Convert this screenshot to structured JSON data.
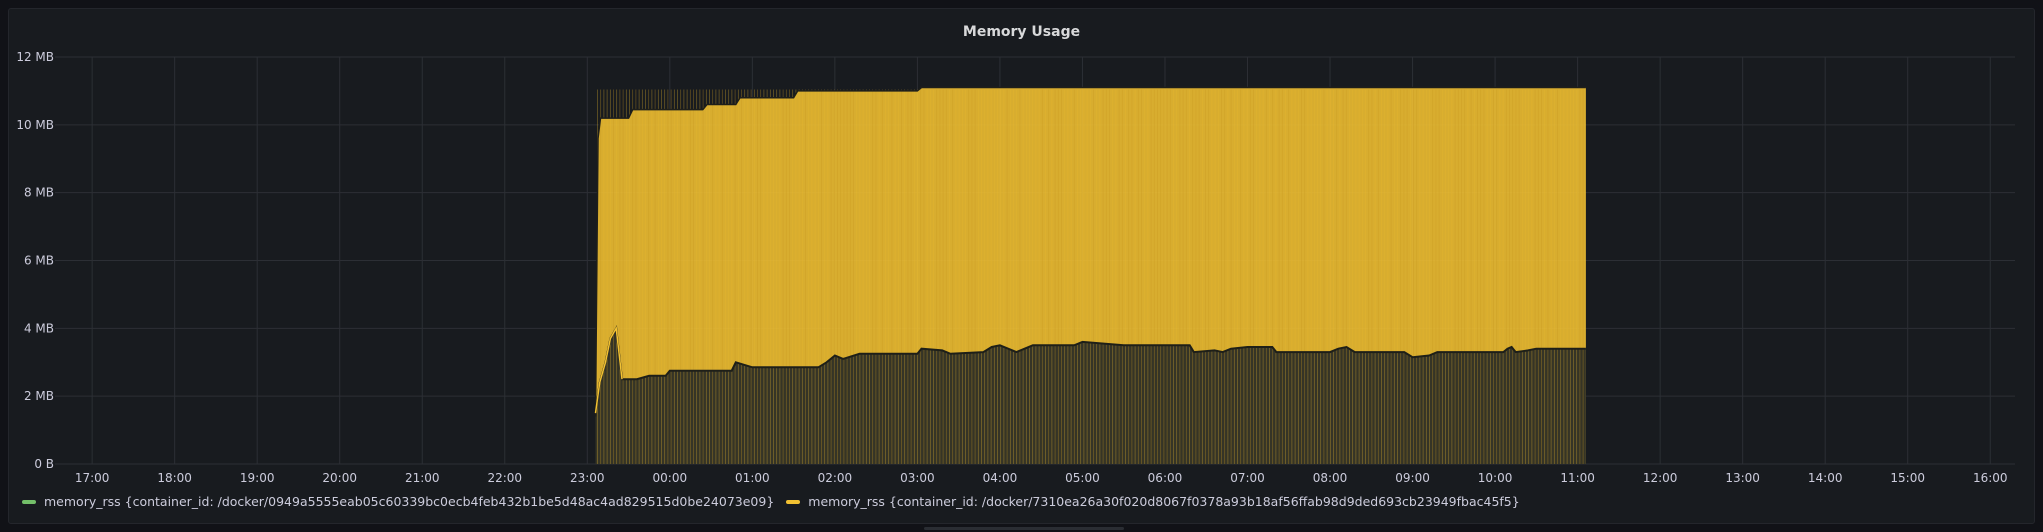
{
  "panel": {
    "title": "Memory Usage"
  },
  "colors": {
    "background": "#181b1f",
    "grid": "#2c2f35",
    "series_green": "#73bf69",
    "series_yellow": "#f2c132",
    "text": "#ccccdc"
  },
  "chart_data": {
    "type": "area",
    "title": "Memory Usage",
    "grid": true,
    "legend_placement": "bottom-left",
    "y_unit": "MB",
    "ylim": [
      0,
      12
    ],
    "y_ticks": [
      {
        "value": 0,
        "label": "0 B"
      },
      {
        "value": 2,
        "label": "2 MB"
      },
      {
        "value": 4,
        "label": "4 MB"
      },
      {
        "value": 6,
        "label": "6 MB"
      },
      {
        "value": 8,
        "label": "8 MB"
      },
      {
        "value": 10,
        "label": "10 MB"
      },
      {
        "value": 12,
        "label": "12 MB"
      }
    ],
    "x_axis_unit": "hours (day 2 = 24 + clock hour)",
    "xlim": [
      16.55,
      40.3
    ],
    "x_ticks": [
      {
        "value": 17,
        "label": "17:00"
      },
      {
        "value": 18,
        "label": "18:00"
      },
      {
        "value": 19,
        "label": "19:00"
      },
      {
        "value": 20,
        "label": "20:00"
      },
      {
        "value": 21,
        "label": "21:00"
      },
      {
        "value": 22,
        "label": "22:00"
      },
      {
        "value": 23,
        "label": "23:00"
      },
      {
        "value": 24,
        "label": "00:00"
      },
      {
        "value": 25,
        "label": "01:00"
      },
      {
        "value": 26,
        "label": "02:00"
      },
      {
        "value": 27,
        "label": "03:00"
      },
      {
        "value": 28,
        "label": "04:00"
      },
      {
        "value": 29,
        "label": "05:00"
      },
      {
        "value": 30,
        "label": "06:00"
      },
      {
        "value": 31,
        "label": "07:00"
      },
      {
        "value": 32,
        "label": "08:00"
      },
      {
        "value": 33,
        "label": "09:00"
      },
      {
        "value": 34,
        "label": "10:00"
      },
      {
        "value": 35,
        "label": "11:00"
      },
      {
        "value": 36,
        "label": "12:00"
      },
      {
        "value": 37,
        "label": "13:00"
      },
      {
        "value": 38,
        "label": "14:00"
      },
      {
        "value": 39,
        "label": "15:00"
      },
      {
        "value": 40,
        "label": "16:00"
      }
    ],
    "series": [
      {
        "name": "memory_rss {container_id: /docker/0949a5555eab05c60339bc0ecb4feb432b1be5d48ac4ad829515d0be24073e09}",
        "color": "#73bf69",
        "data": [
          [
            23.1,
            1.5
          ],
          [
            23.15,
            2.4
          ],
          [
            23.22,
            3.0
          ],
          [
            23.28,
            3.7
          ],
          [
            23.35,
            4.0
          ],
          [
            23.42,
            2.5
          ],
          [
            23.6,
            2.5
          ],
          [
            23.75,
            2.6
          ],
          [
            23.95,
            2.6
          ],
          [
            24.0,
            2.75
          ],
          [
            24.75,
            2.75
          ],
          [
            24.8,
            3.0
          ],
          [
            25.0,
            2.85
          ],
          [
            25.5,
            2.85
          ],
          [
            25.8,
            2.85
          ],
          [
            25.9,
            3.0
          ],
          [
            26.0,
            3.2
          ],
          [
            26.1,
            3.1
          ],
          [
            26.3,
            3.25
          ],
          [
            27.0,
            3.25
          ],
          [
            27.05,
            3.4
          ],
          [
            27.3,
            3.35
          ],
          [
            27.4,
            3.25
          ],
          [
            27.8,
            3.3
          ],
          [
            27.9,
            3.45
          ],
          [
            28.0,
            3.5
          ],
          [
            28.2,
            3.3
          ],
          [
            28.4,
            3.5
          ],
          [
            28.9,
            3.5
          ],
          [
            29.0,
            3.6
          ],
          [
            29.5,
            3.5
          ],
          [
            29.8,
            3.5
          ],
          [
            30.3,
            3.5
          ],
          [
            30.35,
            3.3
          ],
          [
            30.6,
            3.35
          ],
          [
            30.7,
            3.3
          ],
          [
            30.8,
            3.4
          ],
          [
            31.0,
            3.45
          ],
          [
            31.3,
            3.45
          ],
          [
            31.35,
            3.3
          ],
          [
            32.0,
            3.3
          ],
          [
            32.1,
            3.4
          ],
          [
            32.2,
            3.45
          ],
          [
            32.3,
            3.3
          ],
          [
            32.9,
            3.3
          ],
          [
            33.0,
            3.15
          ],
          [
            33.2,
            3.2
          ],
          [
            33.3,
            3.3
          ],
          [
            34.1,
            3.3
          ],
          [
            34.15,
            3.4
          ],
          [
            34.2,
            3.45
          ],
          [
            34.25,
            3.3
          ],
          [
            34.4,
            3.35
          ],
          [
            34.5,
            3.4
          ],
          [
            35.1,
            3.4
          ]
        ]
      },
      {
        "name": "memory_rss {container_id: /docker/7310ea26a30f020d8067f0378a93b18af56ffab98d9ded693cb23949fbac45f5}",
        "color": "#f2c132",
        "data": [
          [
            23.1,
            1.4
          ],
          [
            23.13,
            9.6
          ],
          [
            23.16,
            10.2
          ],
          [
            23.5,
            10.2
          ],
          [
            23.55,
            10.45
          ],
          [
            24.4,
            10.45
          ],
          [
            24.45,
            10.6
          ],
          [
            24.8,
            10.6
          ],
          [
            24.85,
            10.8
          ],
          [
            25.5,
            10.8
          ],
          [
            25.55,
            11.0
          ],
          [
            27.0,
            11.0
          ],
          [
            27.05,
            11.1
          ],
          [
            35.1,
            11.1
          ]
        ]
      }
    ]
  },
  "legend": {
    "items": [
      {
        "label": "memory_rss {container_id: /docker/0949a5555eab05c60339bc0ecb4feb432b1be5d48ac4ad829515d0be24073e09}",
        "color": "#73bf69"
      },
      {
        "label": "memory_rss {container_id: /docker/7310ea26a30f020d8067f0378a93b18af56ffab98d9ded693cb23949fbac45f5}",
        "color": "#f2c132"
      }
    ]
  }
}
